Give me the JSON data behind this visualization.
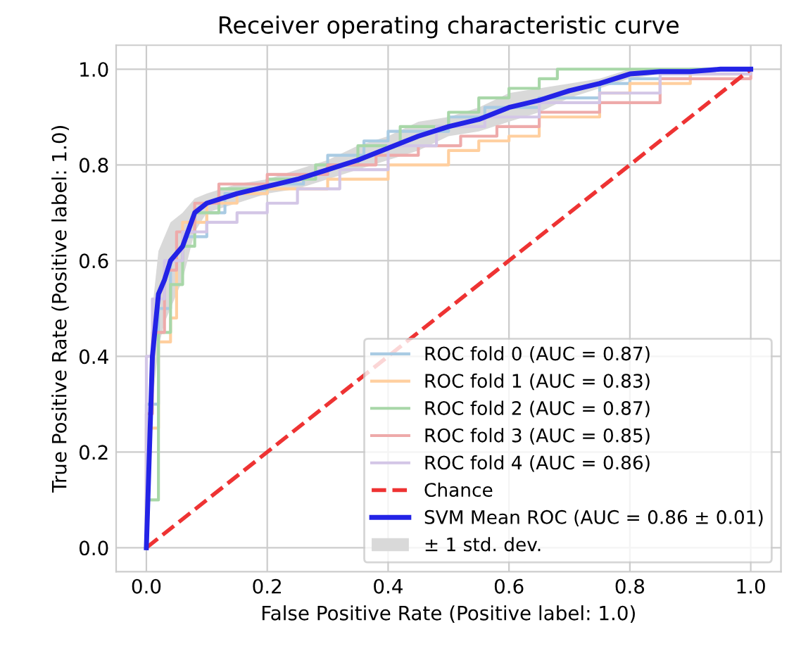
{
  "chart_data": {
    "type": "line",
    "title": "Receiver operating characteristic curve",
    "xlabel": "False Positive Rate (Positive label: 1.0)",
    "ylabel": "True Positive Rate (Positive label: 1.0)",
    "xlim": [
      -0.05,
      1.05
    ],
    "ylim": [
      -0.05,
      1.05
    ],
    "xticks": [
      {
        "value": 0,
        "label": "0.0"
      },
      0.2,
      0.4,
      0.6,
      0.8,
      {
        "value": 1,
        "label": "1.0"
      }
    ],
    "yticks": [
      {
        "value": 0,
        "label": "0.0"
      },
      0.2,
      0.4,
      0.6,
      0.8,
      {
        "value": 1,
        "label": "1.0"
      }
    ],
    "grid": true,
    "legend": "bottom right",
    "series": [
      {
        "name": "ROC fold 0 (AUC = 0.87)",
        "color": "#a9cbe3",
        "x": [
          0,
          0,
          0.02,
          0.02,
          0.04,
          0.04,
          0.06,
          0.06,
          0.1,
          0.1,
          0.13,
          0.13,
          0.2,
          0.2,
          0.26,
          0.26,
          0.3,
          0.3,
          0.36,
          0.36,
          0.4,
          0.4,
          0.5,
          0.5,
          0.56,
          0.56,
          0.65,
          0.65,
          0.75,
          0.75,
          0.8,
          0.8,
          0.9,
          0.9,
          1.0
        ],
        "values": [
          0,
          0.3,
          0.3,
          0.5,
          0.5,
          0.6,
          0.6,
          0.65,
          0.65,
          0.7,
          0.7,
          0.74,
          0.74,
          0.76,
          0.76,
          0.78,
          0.78,
          0.82,
          0.82,
          0.85,
          0.85,
          0.87,
          0.87,
          0.9,
          0.9,
          0.92,
          0.92,
          0.94,
          0.94,
          0.97,
          0.97,
          0.98,
          0.98,
          1.0,
          1.0
        ]
      },
      {
        "name": "ROC fold 1 (AUC = 0.83)",
        "color": "#ffcf9f",
        "x": [
          0,
          0,
          0.02,
          0.02,
          0.04,
          0.04,
          0.05,
          0.05,
          0.06,
          0.06,
          0.1,
          0.1,
          0.15,
          0.15,
          0.2,
          0.2,
          0.3,
          0.3,
          0.4,
          0.4,
          0.5,
          0.5,
          0.55,
          0.55,
          0.6,
          0.6,
          0.65,
          0.65,
          0.75,
          0.75,
          0.8,
          0.8,
          0.9,
          0.9,
          1.0,
          1.0
        ],
        "values": [
          0,
          0.25,
          0.25,
          0.43,
          0.43,
          0.48,
          0.48,
          0.6,
          0.6,
          0.68,
          0.68,
          0.72,
          0.72,
          0.74,
          0.74,
          0.75,
          0.75,
          0.77,
          0.77,
          0.8,
          0.8,
          0.83,
          0.83,
          0.85,
          0.85,
          0.86,
          0.86,
          0.9,
          0.9,
          0.95,
          0.95,
          0.97,
          0.97,
          0.99,
          0.99,
          1.0
        ]
      },
      {
        "name": "ROC fold 2 (AUC = 0.87)",
        "color": "#a8d7a8",
        "x": [
          0,
          0,
          0.02,
          0.02,
          0.04,
          0.04,
          0.06,
          0.06,
          0.08,
          0.08,
          0.12,
          0.12,
          0.2,
          0.2,
          0.28,
          0.28,
          0.35,
          0.35,
          0.42,
          0.42,
          0.5,
          0.5,
          0.55,
          0.55,
          0.6,
          0.6,
          0.65,
          0.65,
          0.68,
          0.68,
          1.0
        ],
        "values": [
          0,
          0.1,
          0.1,
          0.45,
          0.45,
          0.55,
          0.55,
          0.63,
          0.63,
          0.7,
          0.7,
          0.75,
          0.75,
          0.77,
          0.77,
          0.8,
          0.8,
          0.84,
          0.84,
          0.88,
          0.88,
          0.91,
          0.91,
          0.94,
          0.94,
          0.96,
          0.96,
          0.98,
          0.98,
          1.0,
          1.0
        ]
      },
      {
        "name": "ROC fold 3 (AUC = 0.85)",
        "color": "#eeaaaa",
        "x": [
          0,
          0,
          0.01,
          0.01,
          0.03,
          0.03,
          0.05,
          0.05,
          0.08,
          0.08,
          0.12,
          0.12,
          0.2,
          0.2,
          0.3,
          0.3,
          0.38,
          0.38,
          0.45,
          0.45,
          0.52,
          0.52,
          0.58,
          0.58,
          0.65,
          0.65,
          0.75,
          0.75,
          0.85,
          0.85,
          1.0,
          1.0
        ],
        "values": [
          0,
          0.28,
          0.28,
          0.45,
          0.45,
          0.58,
          0.58,
          0.66,
          0.66,
          0.72,
          0.72,
          0.76,
          0.76,
          0.78,
          0.78,
          0.8,
          0.8,
          0.82,
          0.82,
          0.84,
          0.84,
          0.86,
          0.86,
          0.88,
          0.88,
          0.91,
          0.91,
          0.93,
          0.93,
          0.98,
          0.98,
          1.0
        ]
      },
      {
        "name": "ROC fold 4 (AUC = 0.86)",
        "color": "#d3c6e6",
        "x": [
          0,
          0,
          0.01,
          0.01,
          0.03,
          0.03,
          0.06,
          0.06,
          0.1,
          0.1,
          0.15,
          0.15,
          0.2,
          0.2,
          0.25,
          0.25,
          0.32,
          0.32,
          0.4,
          0.4,
          0.48,
          0.48,
          0.56,
          0.56,
          0.65,
          0.65,
          0.75,
          0.75,
          0.85,
          0.85,
          1.0,
          1.0
        ],
        "values": [
          0,
          0.4,
          0.4,
          0.52,
          0.52,
          0.6,
          0.6,
          0.66,
          0.66,
          0.68,
          0.68,
          0.7,
          0.7,
          0.72,
          0.72,
          0.75,
          0.75,
          0.79,
          0.79,
          0.84,
          0.84,
          0.88,
          0.88,
          0.9,
          0.9,
          0.93,
          0.93,
          0.95,
          0.95,
          0.99,
          0.99,
          1.0
        ]
      },
      {
        "name": "Chance",
        "color": "#ee3333",
        "line_style": "dashed",
        "x": [
          0,
          1
        ],
        "values": [
          0,
          1
        ]
      },
      {
        "name": "SVM Mean ROC (AUC = 0.86 ± 0.01)",
        "color": "#2323e6",
        "x": [
          0,
          0.01,
          0.02,
          0.03,
          0.04,
          0.06,
          0.08,
          0.1,
          0.15,
          0.2,
          0.25,
          0.3,
          0.35,
          0.4,
          0.45,
          0.5,
          0.55,
          0.6,
          0.65,
          0.7,
          0.75,
          0.8,
          0.85,
          0.9,
          0.95,
          1.0
        ],
        "values": [
          0,
          0.4,
          0.53,
          0.56,
          0.6,
          0.63,
          0.7,
          0.72,
          0.74,
          0.755,
          0.77,
          0.79,
          0.81,
          0.835,
          0.86,
          0.88,
          0.895,
          0.92,
          0.935,
          0.955,
          0.97,
          0.99,
          0.995,
          0.995,
          1.0,
          1.0
        ],
        "lower": [
          0,
          0.3,
          0.42,
          0.47,
          0.5,
          0.56,
          0.66,
          0.7,
          0.72,
          0.74,
          0.75,
          0.77,
          0.79,
          0.81,
          0.83,
          0.86,
          0.87,
          0.89,
          0.91,
          0.94,
          0.96,
          0.98,
          0.99,
          0.99,
          1.0,
          1.0
        ],
        "upper": [
          0,
          0.5,
          0.62,
          0.65,
          0.68,
          0.7,
          0.73,
          0.74,
          0.76,
          0.77,
          0.79,
          0.81,
          0.84,
          0.86,
          0.89,
          0.9,
          0.92,
          0.95,
          0.96,
          0.97,
          0.98,
          1.0,
          1.0,
          1.0,
          1.0,
          1.0
        ]
      },
      {
        "type": "area",
        "name": "± 1 std. dev.",
        "color": "#d9d9d9"
      }
    ]
  }
}
